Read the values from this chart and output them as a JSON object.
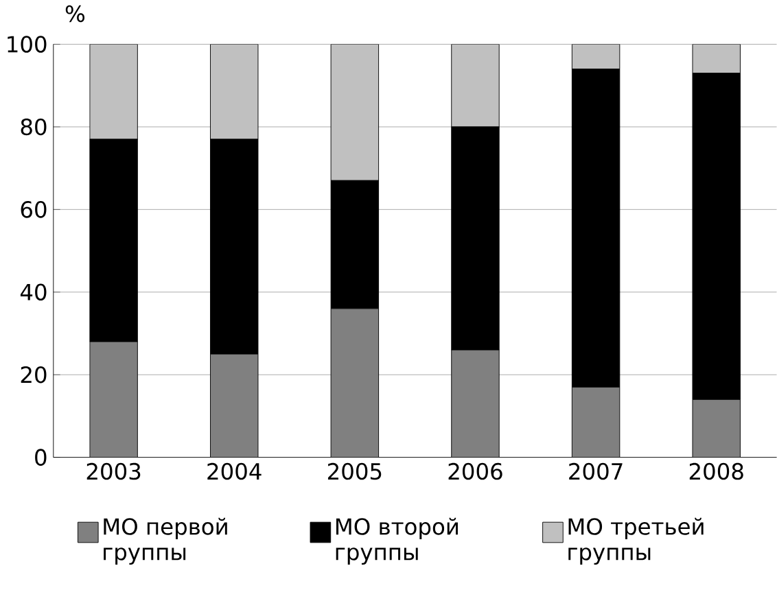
{
  "chart_data": {
    "type": "bar",
    "stacked": true,
    "ylabel": "%",
    "categories": [
      "2003",
      "2004",
      "2005",
      "2006",
      "2007",
      "2008"
    ],
    "series": [
      {
        "name": "МО первой группы",
        "color": "#808080",
        "values": [
          28,
          25,
          36,
          26,
          17,
          14
        ]
      },
      {
        "name": "МО второй группы",
        "color": "#000000",
        "values": [
          49,
          52,
          31,
          54,
          77,
          79
        ]
      },
      {
        "name": "МО третьей группы",
        "color": "#c0c0c0",
        "values": [
          23,
          23,
          33,
          20,
          6,
          7
        ]
      }
    ],
    "ylim": [
      0,
      100
    ],
    "yticks": [
      0,
      20,
      40,
      60,
      80,
      100
    ],
    "grid": "y",
    "legend": "bottom"
  }
}
